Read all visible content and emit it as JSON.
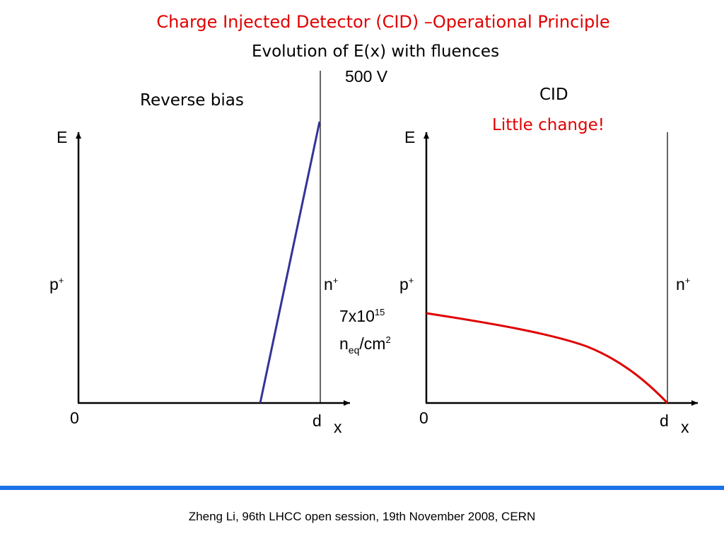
{
  "title": "Charge Injected Detector (CID) –Operational Principle",
  "subtitle": "Evolution of E(x) with fluences",
  "voltage": "500 V",
  "left_panel": {
    "heading": "Reverse bias",
    "y_axis_label": "E",
    "x_axis_label": "x",
    "origin_label": "0",
    "thickness_label": "d",
    "left_contact": {
      "base": "p",
      "sup": "+"
    },
    "right_contact": {
      "base": "n",
      "sup": "+"
    },
    "line_color": "#333399"
  },
  "fluence": {
    "line1_base": "7x10",
    "line1_sup": "15",
    "line2_base": "n",
    "line2_sub": "eq",
    "line2_unit": "/cm",
    "line2_sup": "2"
  },
  "right_panel": {
    "heading": "CID",
    "note": "Little change!",
    "y_axis_label": "E",
    "x_axis_label": "x",
    "origin_label": "0",
    "thickness_label": "d",
    "left_contact": {
      "base": "p",
      "sup": "+"
    },
    "right_contact": {
      "base": "n",
      "sup": "+"
    },
    "curve_color": "#e00000"
  },
  "footer": "Zheng Li, 96th LHCC open session, 19th November 2008, CERN",
  "colors": {
    "accent_red": "#e00000",
    "divider_blue": "#1a73e8"
  }
}
